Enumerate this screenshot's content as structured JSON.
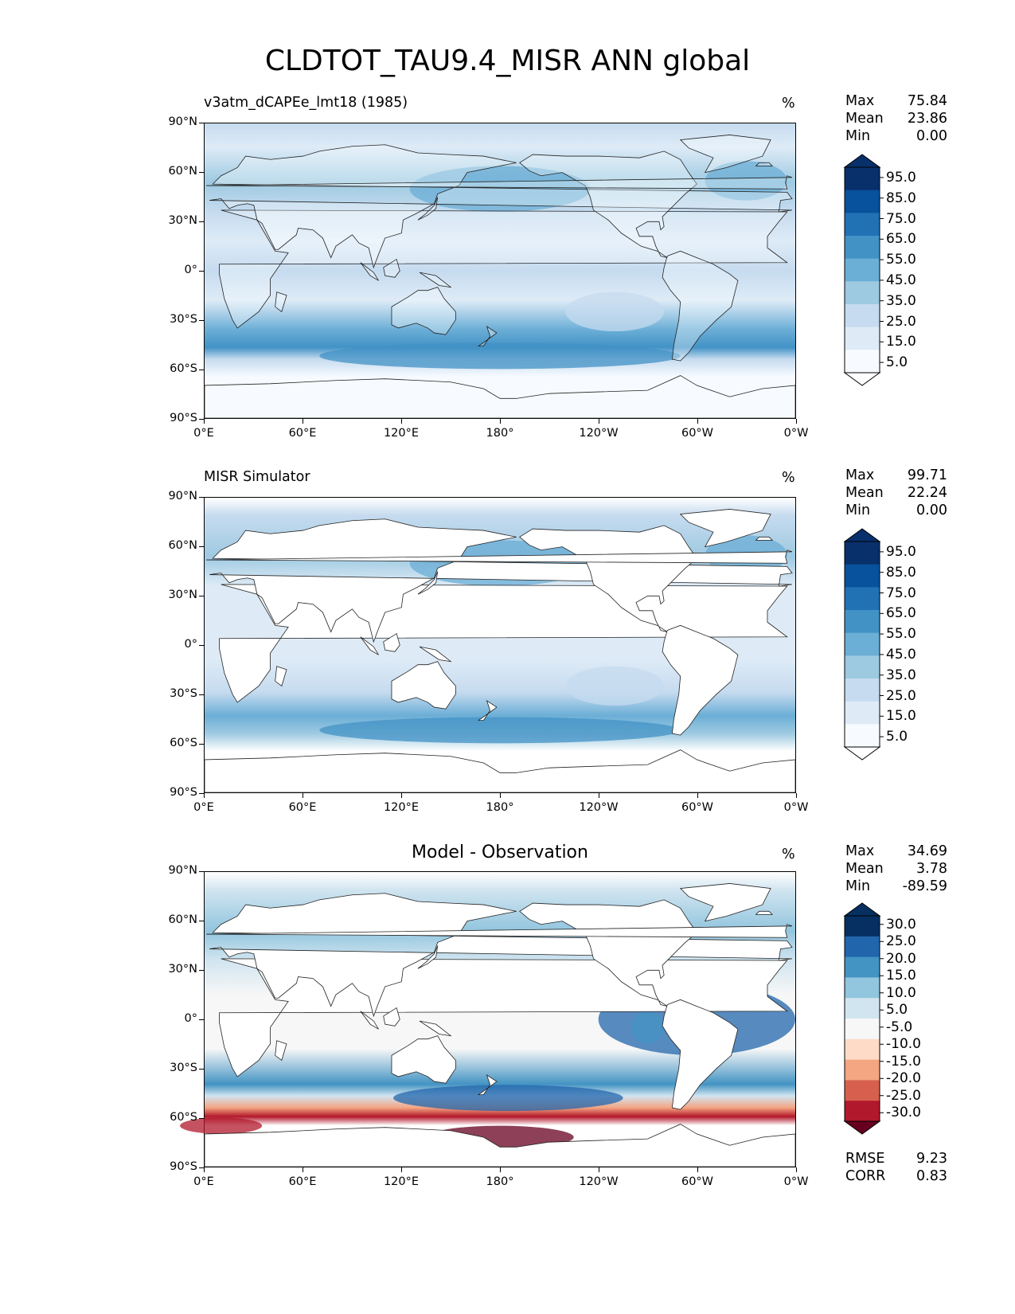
{
  "chart_data": {
    "type": "heatmap",
    "title": "CLDTOT_TAU9.4_MISR ANN global",
    "panels": [
      {
        "id": "test",
        "title": "v3atm_dCAPEe_lmt18 (1985)",
        "units": "%",
        "stats": [
          {
            "label": "Max",
            "value": "75.84"
          },
          {
            "label": "Mean",
            "value": "23.86"
          },
          {
            "label": "Min",
            "value": "0.00"
          }
        ],
        "colorbar_labels": [
          "95.0",
          "85.0",
          "75.0",
          "65.0",
          "55.0",
          "45.0",
          "35.0",
          "25.0",
          "15.0",
          "5.0"
        ],
        "colorbar_colors": [
          "#08306b",
          "#08519c",
          "#2171b5",
          "#4292c6",
          "#6baed6",
          "#9ecae1",
          "#c6dbef",
          "#deebf7",
          "#f7fbff",
          "#ffffff"
        ]
      },
      {
        "id": "ref",
        "title": "MISR Simulator",
        "units": "%",
        "stats": [
          {
            "label": "Max",
            "value": "99.71"
          },
          {
            "label": "Mean",
            "value": "22.24"
          },
          {
            "label": "Min",
            "value": "0.00"
          }
        ],
        "colorbar_labels": [
          "95.0",
          "85.0",
          "75.0",
          "65.0",
          "55.0",
          "45.0",
          "35.0",
          "25.0",
          "15.0",
          "5.0"
        ],
        "colorbar_colors": [
          "#08306b",
          "#08519c",
          "#2171b5",
          "#4292c6",
          "#6baed6",
          "#9ecae1",
          "#c6dbef",
          "#deebf7",
          "#f7fbff",
          "#ffffff"
        ]
      },
      {
        "id": "diff",
        "title": "Model - Observation",
        "units": "%",
        "stats": [
          {
            "label": "Max",
            "value": "34.69"
          },
          {
            "label": "Mean",
            "value": "3.78"
          },
          {
            "label": "Min",
            "value": "-89.59"
          }
        ],
        "extra_stats": [
          {
            "label": "RMSE",
            "value": "9.23"
          },
          {
            "label": "CORR",
            "value": "0.83"
          }
        ],
        "colorbar_labels": [
          "30.0",
          "25.0",
          "20.0",
          "15.0",
          "10.0",
          "5.0",
          "-5.0",
          "-10.0",
          "-15.0",
          "-20.0",
          "-25.0",
          "-30.0"
        ],
        "colorbar_colors": [
          "#053061",
          "#2166ac",
          "#4393c3",
          "#92c5de",
          "#d1e5f0",
          "#f7f7f7",
          "#fddbc7",
          "#f4a582",
          "#d6604d",
          "#b2182b",
          "#67001f"
        ]
      }
    ],
    "xlabels": [
      "0°E",
      "60°E",
      "120°E",
      "180°",
      "120°W",
      "60°W",
      "0°W"
    ],
    "ylabels": [
      "90°N",
      "60°N",
      "30°N",
      "0°",
      "30°S",
      "60°S",
      "90°S"
    ],
    "xlim": [
      0,
      360
    ],
    "ylim": [
      -90,
      90
    ]
  }
}
